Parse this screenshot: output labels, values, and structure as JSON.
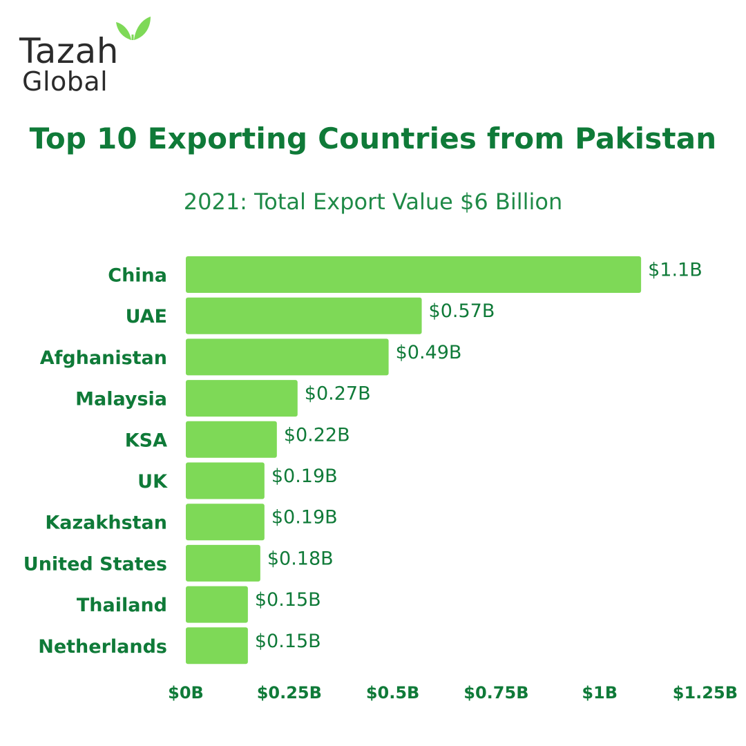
{
  "brand": {
    "name_top": "Tazah",
    "name_bottom": "Global",
    "leaf_color": "#7ed957",
    "text_color": "#2b2b2b",
    "icon": "leaf-sprout-icon"
  },
  "colors": {
    "title": "#0f7a38",
    "bar": "#7ed957",
    "label": "#0f7a38"
  },
  "chart_data": {
    "type": "bar",
    "orientation": "horizontal",
    "title": "Top 10 Exporting Countries from Pakistan",
    "subtitle": "2021: Total Export Value $6 Billion",
    "categories": [
      "China",
      "UAE",
      "Afghanistan",
      "Malaysia",
      "KSA",
      "UK",
      "Kazakhstan",
      "United States",
      "Thailand",
      "Netherlands"
    ],
    "values": [
      1.1,
      0.57,
      0.49,
      0.27,
      0.22,
      0.19,
      0.19,
      0.18,
      0.15,
      0.15
    ],
    "value_labels": [
      "$1.1B",
      "$0.57B",
      "$0.49B",
      "$0.27B",
      "$0.22B",
      "$0.19B",
      "$0.19B",
      "$0.18B",
      "$0.15B",
      "$0.15B"
    ],
    "xlim": [
      0,
      1.25
    ],
    "xticks": [
      0,
      0.25,
      0.5,
      0.75,
      1,
      1.25
    ],
    "xtick_labels": [
      "$0B",
      "$0.25B",
      "$0.5B",
      "$0.75B",
      "$1B",
      "$1.25B"
    ],
    "xlabel": "",
    "ylabel": "",
    "grid": false,
    "legend": "none"
  }
}
